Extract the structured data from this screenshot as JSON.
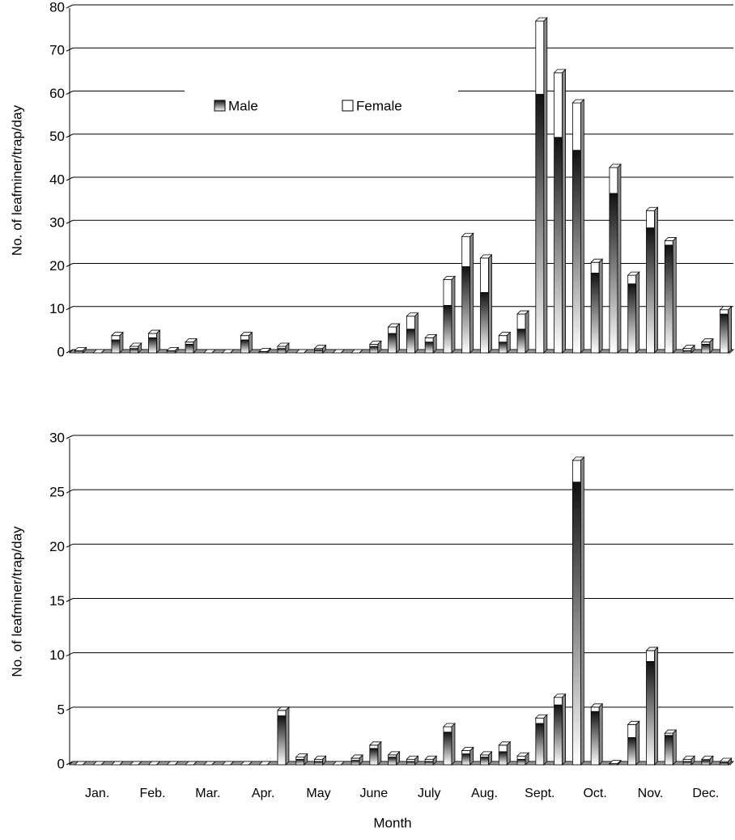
{
  "chart_data": [
    {
      "type": "bar",
      "stacked": true,
      "ylabel": "No. of leafminer/trap/day",
      "ylim": [
        0,
        80
      ],
      "yticks": [
        0,
        10,
        20,
        30,
        40,
        50,
        60,
        70,
        80
      ],
      "grid": true,
      "legend": "top",
      "series": [
        {
          "name": "Male",
          "color": "#222222",
          "values": [
            0.5,
            0,
            3,
            1,
            3.5,
            0.5,
            2,
            0,
            0,
            3,
            0.3,
            1,
            0,
            0.7,
            0,
            0,
            1.5,
            4.5,
            5.5,
            2.5,
            11,
            20,
            14,
            2.5,
            5.5,
            60,
            50,
            47,
            18.5,
            37,
            16,
            29,
            25,
            0.5,
            2,
            9
          ]
        },
        {
          "name": "Female",
          "color": "#ffffff",
          "values": [
            0,
            0,
            1,
            0.5,
            1,
            0,
            0.5,
            0,
            0,
            1,
            0,
            0.5,
            0,
            0.3,
            0,
            0,
            0.5,
            1.5,
            3,
            1,
            6,
            7,
            8,
            1.5,
            3.5,
            17,
            15,
            11,
            2.5,
            6,
            2,
            4,
            1,
            0.5,
            0.5,
            1
          ]
        }
      ]
    },
    {
      "type": "bar",
      "stacked": true,
      "ylabel": "No. of leafminer/trap/day",
      "xlabel": "Month",
      "categories": [
        null,
        "Jan.",
        null,
        null,
        "Feb.",
        null,
        null,
        "Mar.",
        null,
        null,
        "Apr.",
        null,
        null,
        "May",
        null,
        null,
        "June",
        null,
        null,
        "July",
        null,
        null,
        "Aug.",
        null,
        null,
        "Sept.",
        null,
        null,
        "Oct.",
        null,
        null,
        "Nov.",
        null,
        null,
        "Dec.",
        null
      ],
      "ylim": [
        0,
        30
      ],
      "yticks": [
        0,
        5,
        10,
        15,
        20,
        25,
        30
      ],
      "grid": true,
      "series": [
        {
          "color": "#222222",
          "values": [
            0,
            0,
            0,
            0,
            0,
            0,
            0,
            0,
            0,
            0,
            0,
            4.5,
            0.5,
            0.3,
            0,
            0.4,
            1.5,
            0.7,
            0.3,
            0.3,
            3,
            1,
            0.7,
            1.2,
            0.5,
            3.8,
            5.5,
            26,
            4.9,
            0.1,
            2.5,
            9.5,
            2.7,
            0.3,
            0.4,
            0.2
          ]
        },
        {
          "color": "#ffffff",
          "values": [
            0,
            0,
            0,
            0,
            0,
            0,
            0,
            0,
            0,
            0,
            0,
            0.5,
            0.2,
            0.2,
            0,
            0.2,
            0.3,
            0.2,
            0.2,
            0.2,
            0.5,
            0.3,
            0.2,
            0.6,
            0.3,
            0.5,
            0.7,
            2,
            0.4,
            0,
            1.2,
            1,
            0.2,
            0.2,
            0.1,
            0.1
          ]
        }
      ]
    }
  ]
}
